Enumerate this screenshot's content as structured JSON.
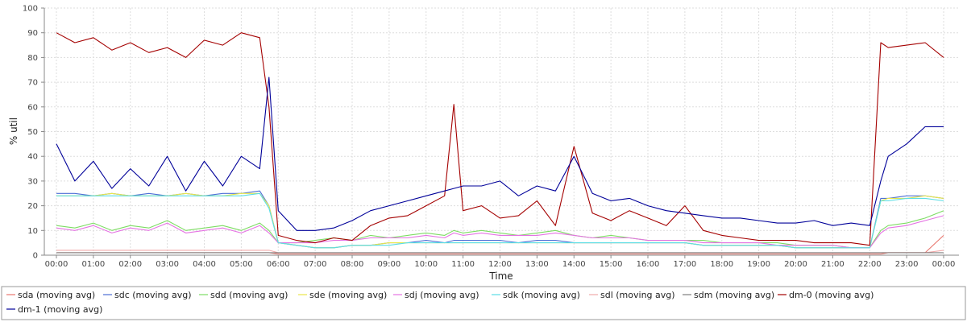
{
  "chart_data": {
    "type": "line",
    "title": "",
    "xlabel": "Time",
    "ylabel": "% util",
    "ylim": [
      0,
      100
    ],
    "y_ticks": [
      0,
      10,
      20,
      30,
      40,
      50,
      60,
      70,
      80,
      90,
      100
    ],
    "x_ticks": [
      "00:00",
      "01:00",
      "02:00",
      "03:00",
      "04:00",
      "05:00",
      "06:00",
      "07:00",
      "08:00",
      "09:00",
      "10:00",
      "11:00",
      "12:00",
      "13:00",
      "14:00",
      "15:00",
      "16:00",
      "17:00",
      "18:00",
      "19:00",
      "20:00",
      "21:00",
      "22:00",
      "23:00",
      "00:00"
    ],
    "grid": true,
    "legend_position": "bottom",
    "x_hours": [
      0,
      0.5,
      1,
      1.5,
      2,
      2.5,
      3,
      3.5,
      4,
      4.5,
      5,
      5.5,
      5.75,
      6,
      6.5,
      7,
      7.5,
      8,
      8.5,
      9,
      9.5,
      10,
      10.5,
      10.75,
      11,
      11.5,
      12,
      12.5,
      13,
      13.5,
      14,
      14.5,
      15,
      15.5,
      16,
      16.5,
      17,
      17.5,
      18,
      18.5,
      19,
      19.5,
      20,
      20.5,
      21,
      21.5,
      22,
      22.3,
      22.5,
      23,
      23.5,
      24
    ],
    "series": [
      {
        "name": "sda (moving avg)",
        "color": "#e8766d",
        "values": [
          1,
          1,
          1,
          1,
          1,
          1,
          1,
          1,
          1,
          1,
          1,
          1,
          1,
          0.5,
          0.5,
          0.5,
          0.5,
          0.5,
          0.5,
          0.5,
          0.5,
          0.5,
          0.5,
          0.5,
          0.5,
          0.5,
          0.5,
          0.5,
          0.5,
          0.5,
          0.5,
          0.5,
          0.5,
          0.5,
          0.5,
          0.5,
          0.5,
          0.5,
          0.5,
          0.5,
          0.5,
          0.5,
          0.5,
          0.5,
          0.5,
          0.5,
          0.5,
          0.5,
          1,
          1,
          1,
          8
        ]
      },
      {
        "name": "sdc (moving avg)",
        "color": "#4d6fd6",
        "values": [
          25,
          25,
          24,
          25,
          24,
          25,
          24,
          25,
          24,
          25,
          25,
          26,
          20,
          5,
          4,
          3,
          3,
          4,
          4,
          5,
          5,
          6,
          5,
          6,
          6,
          6,
          6,
          5,
          6,
          6,
          5,
          5,
          5,
          5,
          5,
          5,
          5,
          4,
          4,
          4,
          4,
          4,
          3,
          3,
          3,
          3,
          3,
          23,
          23,
          24,
          24,
          23
        ]
      },
      {
        "name": "sdd (moving avg)",
        "color": "#7ddc63",
        "values": [
          12,
          11,
          13,
          10,
          12,
          11,
          14,
          10,
          11,
          12,
          10,
          13,
          10,
          5,
          5,
          6,
          7,
          6,
          8,
          7,
          8,
          9,
          8,
          10,
          9,
          10,
          9,
          8,
          9,
          10,
          8,
          7,
          8,
          7,
          6,
          6,
          6,
          6,
          5,
          5,
          5,
          5,
          4,
          4,
          4,
          3,
          3,
          10,
          12,
          13,
          15,
          18
        ]
      },
      {
        "name": "sde (moving avg)",
        "color": "#e9e74a",
        "values": [
          24,
          24,
          24,
          25,
          24,
          24,
          24,
          25,
          24,
          24,
          25,
          25,
          20,
          5,
          4,
          3,
          3,
          4,
          4,
          5,
          5,
          5,
          5,
          5,
          5,
          5,
          5,
          5,
          5,
          5,
          5,
          5,
          5,
          5,
          5,
          5,
          5,
          4,
          4,
          4,
          4,
          4,
          3,
          3,
          3,
          3,
          3,
          22,
          23,
          23,
          24,
          23
        ]
      },
      {
        "name": "sdj (moving avg)",
        "color": "#e573e3",
        "values": [
          11,
          10,
          12,
          9,
          11,
          10,
          13,
          9,
          10,
          11,
          9,
          12,
          9,
          5,
          5,
          5,
          6,
          6,
          7,
          7,
          7,
          8,
          7,
          9,
          8,
          9,
          8,
          8,
          8,
          9,
          8,
          7,
          7,
          7,
          6,
          6,
          6,
          5,
          5,
          5,
          5,
          4,
          4,
          4,
          4,
          3,
          3,
          9,
          11,
          12,
          14,
          16
        ]
      },
      {
        "name": "sdk (moving avg)",
        "color": "#5bdde5",
        "values": [
          24,
          24,
          24,
          24,
          24,
          24,
          24,
          24,
          24,
          24,
          24,
          25,
          19,
          5,
          4,
          3,
          3,
          4,
          4,
          4,
          5,
          5,
          5,
          5,
          5,
          5,
          5,
          5,
          5,
          5,
          5,
          5,
          5,
          5,
          5,
          5,
          5,
          4,
          4,
          4,
          4,
          4,
          3,
          3,
          3,
          3,
          3,
          22,
          22,
          23,
          23,
          22
        ]
      },
      {
        "name": "sdl (moving avg)",
        "color": "#f1a9a9",
        "values": [
          2,
          2,
          2,
          2,
          2,
          2,
          2,
          2,
          2,
          2,
          2,
          2,
          2,
          1,
          1,
          1,
          1,
          1,
          1,
          1,
          1,
          1,
          1,
          1,
          1,
          1,
          1,
          1,
          1,
          1,
          1,
          1,
          1,
          1,
          1,
          1,
          1,
          1,
          1,
          1,
          1,
          1,
          1,
          1,
          1,
          1,
          1,
          1,
          1,
          1,
          1,
          2
        ]
      },
      {
        "name": "sdm (moving avg)",
        "color": "#7f7f7f",
        "values": [
          1,
          1,
          1,
          1,
          1,
          1,
          1,
          1,
          1,
          1,
          1,
          1,
          1,
          1,
          1,
          1,
          1,
          1,
          1,
          1,
          1,
          1,
          1,
          1,
          1,
          1,
          1,
          1,
          1,
          1,
          1,
          1,
          1,
          1,
          1,
          1,
          1,
          1,
          1,
          1,
          1,
          1,
          1,
          1,
          1,
          1,
          1,
          1,
          1,
          1,
          1,
          1
        ]
      },
      {
        "name": "dm-0 (moving avg)",
        "color": "#a40000",
        "values": [
          90,
          86,
          88,
          83,
          86,
          82,
          84,
          80,
          87,
          85,
          90,
          88,
          60,
          8,
          6,
          5,
          7,
          6,
          12,
          15,
          16,
          20,
          24,
          61,
          18,
          20,
          15,
          16,
          22,
          12,
          44,
          17,
          14,
          18,
          15,
          12,
          20,
          10,
          8,
          7,
          6,
          6,
          6,
          5,
          5,
          5,
          4,
          86,
          84,
          85,
          86,
          80
        ]
      },
      {
        "name": "dm-1 (moving avg)",
        "color": "#000099",
        "values": [
          45,
          30,
          38,
          27,
          35,
          28,
          40,
          26,
          38,
          28,
          40,
          35,
          72,
          18,
          10,
          10,
          11,
          14,
          18,
          20,
          22,
          24,
          26,
          27,
          28,
          28,
          30,
          24,
          28,
          26,
          40,
          25,
          22,
          23,
          20,
          18,
          17,
          16,
          15,
          15,
          14,
          13,
          13,
          14,
          12,
          13,
          12,
          30,
          40,
          45,
          52,
          52
        ]
      }
    ]
  }
}
